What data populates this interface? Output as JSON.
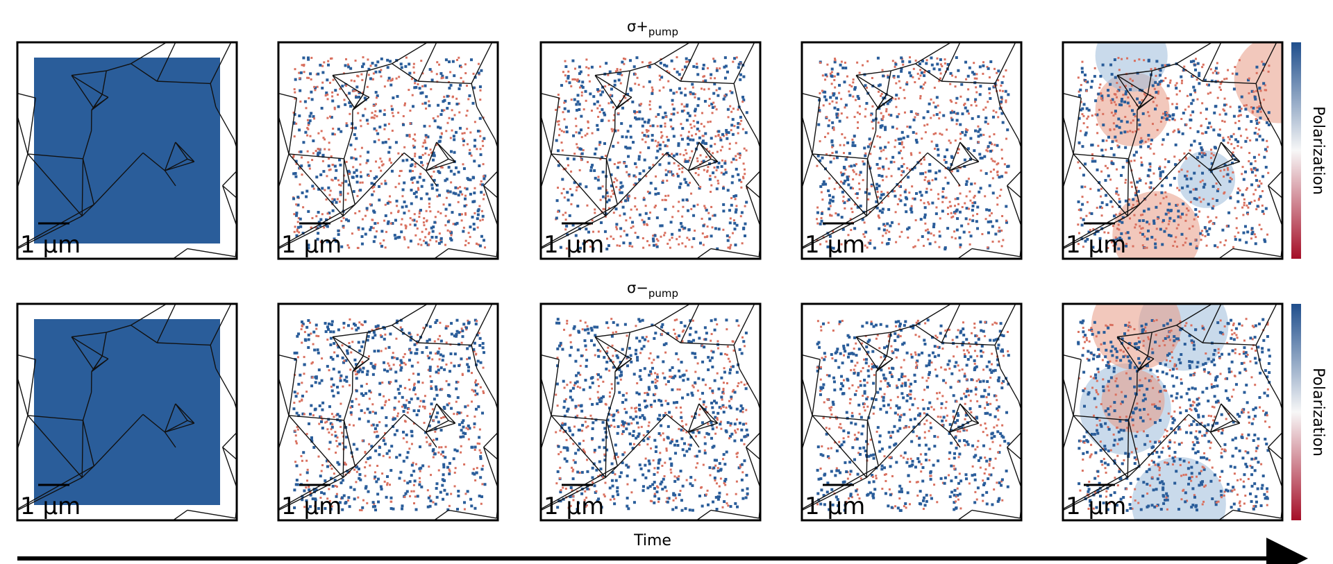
{
  "rows": [
    {
      "title": {
        "main": "σ+",
        "sub": "pump"
      },
      "scale_bars": [
        "1 μm",
        "1 μm",
        "1 μm",
        "1 μm",
        "1 μm"
      ],
      "colorbar_label": "Polarization"
    },
    {
      "title": {
        "main": "σ−",
        "sub": "pump"
      },
      "scale_bars": [
        "1 μm",
        "1 μm",
        "1 μm",
        "1 μm",
        "1 μm"
      ],
      "colorbar_label": "Polarization"
    }
  ],
  "x_label": "Time"
}
